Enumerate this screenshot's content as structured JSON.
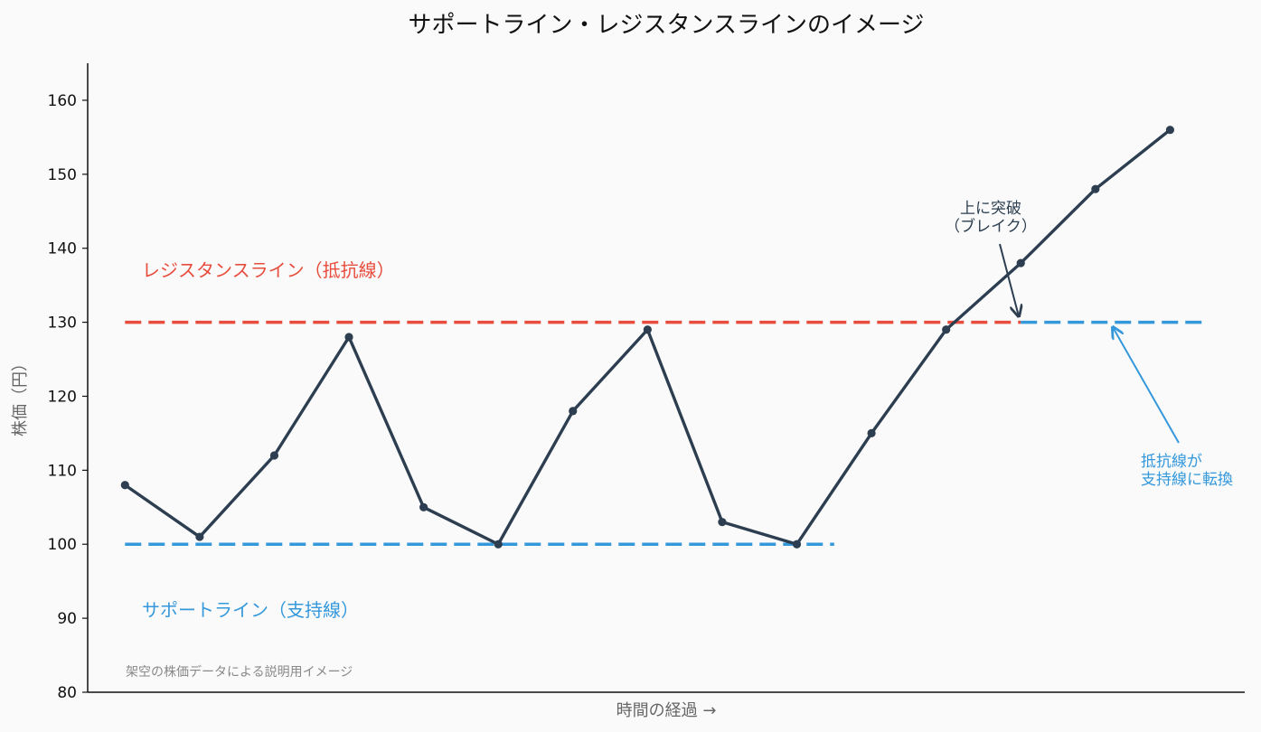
{
  "colors": {
    "background": "#fafafa",
    "price_line": "#2c3e50",
    "resistance": "#e74c3c",
    "support": "#3498db",
    "axis": "#111111",
    "muted_text": "#888888",
    "axis_label": "#666666"
  },
  "chart_data": {
    "type": "line",
    "title": "サポートライン・レジスタンスラインのイメージ",
    "xlabel": "時間の経過 →",
    "ylabel": "株価（円）",
    "ylim": [
      80,
      165
    ],
    "yticks": [
      80,
      90,
      100,
      110,
      120,
      130,
      140,
      150,
      160
    ],
    "grid": false,
    "series": [
      {
        "x": [
          0,
          1,
          2,
          3,
          4,
          5,
          6,
          7,
          8,
          9,
          10,
          11,
          12,
          13,
          14
        ],
        "values": [
          108,
          101,
          112,
          128,
          105,
          100,
          118,
          129,
          103,
          100,
          115,
          129,
          138,
          148,
          156
        ]
      }
    ],
    "reference_lines": [
      {
        "name": "レジスタンスライン（抵抗線）",
        "y": 130,
        "x_start": 0,
        "x_end": 12,
        "color": "#e74c3c"
      },
      {
        "name": "サポートライン（支持線）",
        "y": 100,
        "x_start": 0,
        "x_end": 9.5,
        "color": "#3498db"
      },
      {
        "name": "support_from_resistance",
        "y": 130,
        "x_start": 12,
        "x_end": 14.5,
        "color": "#3498db"
      }
    ],
    "annotations": [
      {
        "text_lines": [
          "上に突破",
          "（ブレイク）"
        ],
        "color": "#2c3e50",
        "target": [
          12,
          130
        ]
      },
      {
        "text_lines": [
          "抵抗線が",
          "支持線に転換"
        ],
        "color": "#3498db",
        "target": [
          13.25,
          130
        ]
      }
    ],
    "labels": {
      "resistance": "レジスタンスライン（抵抗線）",
      "support": "サポートライン（支持線）",
      "note": "架空の株価データによる説明用イメージ"
    }
  }
}
